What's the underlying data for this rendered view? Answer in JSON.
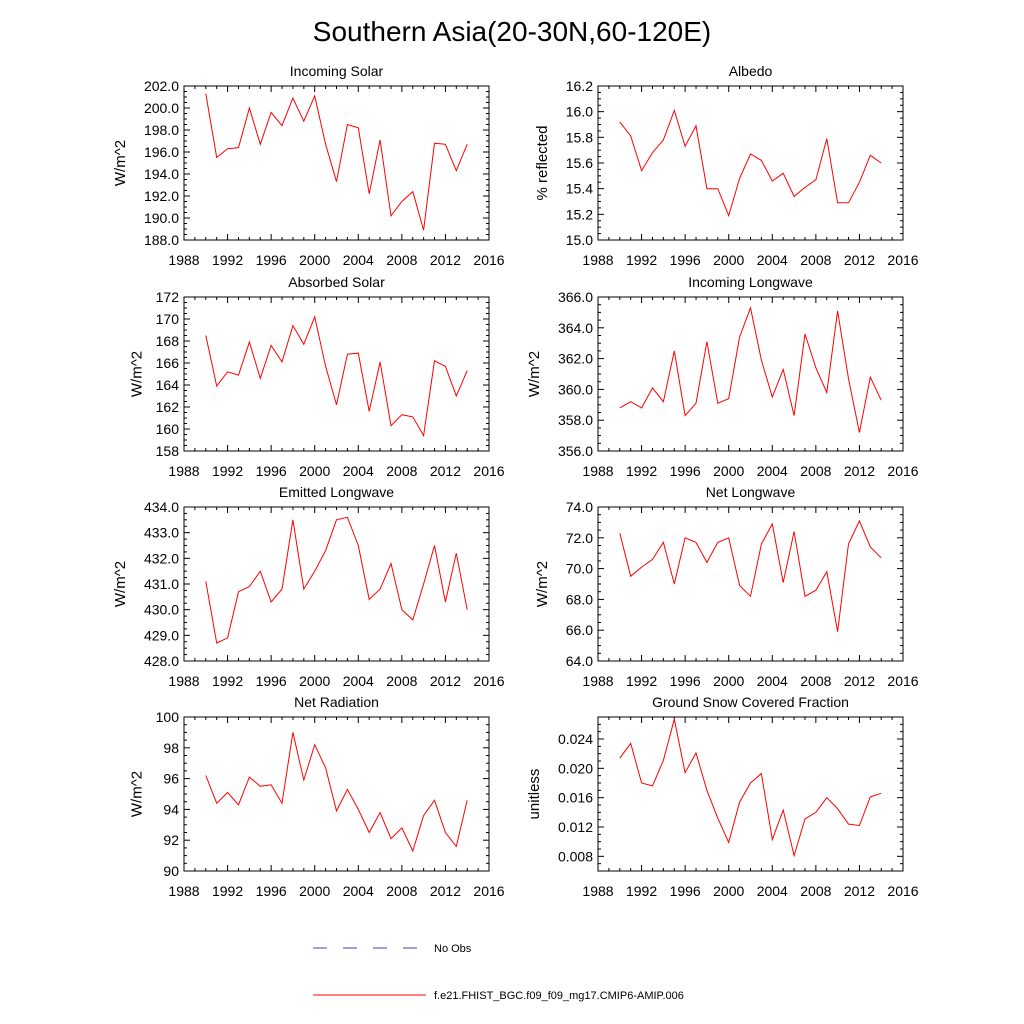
{
  "figure": {
    "title": "Southern Asia(20-30N,60-120E)",
    "line_color": "#ff0000",
    "obs_color": "#3f3fbf"
  },
  "legend": {
    "obs_label": "No Obs",
    "model_label": "f.e21.FHIST_BGC.f09_f09_mg17.CMIP6-AMIP.006"
  },
  "chart_data": [
    {
      "type": "line",
      "title": "Incoming Solar",
      "ylabel": "W/m^2",
      "xlim": [
        1988,
        2016
      ],
      "ylim": [
        188,
        202
      ],
      "xticks": [
        1988,
        1992,
        1996,
        2000,
        2004,
        2008,
        2012,
        2016
      ],
      "yticks": [
        188,
        190,
        192,
        194,
        196,
        198,
        200,
        202
      ],
      "ytick_labels": [
        "188.0",
        "190.0",
        "192.0",
        "194.0",
        "196.0",
        "198.0",
        "200.0",
        "202.0"
      ],
      "x": [
        1990,
        1991,
        1992,
        1993,
        1994,
        1995,
        1996,
        1997,
        1998,
        1999,
        2000,
        2001,
        2002,
        2003,
        2004,
        2005,
        2006,
        2007,
        2008,
        2009,
        2010,
        2011,
        2012,
        2013,
        2014
      ],
      "values": [
        201.3,
        195.5,
        196.3,
        196.4,
        200.0,
        196.7,
        199.6,
        198.4,
        200.9,
        198.8,
        201.1,
        196.7,
        193.3,
        198.5,
        198.2,
        192.2,
        197.1,
        190.2,
        191.5,
        192.4,
        188.9,
        196.8,
        196.7,
        194.3,
        196.7
      ]
    },
    {
      "type": "line",
      "title": "Albedo",
      "ylabel": "% reflected",
      "xlim": [
        1988,
        2016
      ],
      "ylim": [
        15.0,
        16.2
      ],
      "xticks": [
        1988,
        1992,
        1996,
        2000,
        2004,
        2008,
        2012,
        2016
      ],
      "yticks": [
        15.0,
        15.2,
        15.4,
        15.6,
        15.8,
        16.0,
        16.2
      ],
      "ytick_labels": [
        "15.0",
        "15.2",
        "15.4",
        "15.6",
        "15.8",
        "16.0",
        "16.2"
      ],
      "x": [
        1990,
        1991,
        1992,
        1993,
        1994,
        1995,
        1996,
        1997,
        1998,
        1999,
        2000,
        2001,
        2002,
        2003,
        2004,
        2005,
        2006,
        2007,
        2008,
        2009,
        2010,
        2011,
        2012,
        2013,
        2014
      ],
      "values": [
        15.92,
        15.81,
        15.54,
        15.68,
        15.78,
        16.01,
        15.73,
        15.89,
        15.4,
        15.4,
        15.19,
        15.48,
        15.67,
        15.62,
        15.46,
        15.52,
        15.34,
        15.41,
        15.47,
        15.79,
        15.29,
        15.29,
        15.45,
        15.66,
        15.6
      ]
    },
    {
      "type": "line",
      "title": "Absorbed Solar",
      "ylabel": "W/m^2",
      "xlim": [
        1988,
        2016
      ],
      "ylim": [
        158,
        172
      ],
      "xticks": [
        1988,
        1992,
        1996,
        2000,
        2004,
        2008,
        2012,
        2016
      ],
      "yticks": [
        158,
        160,
        162,
        164,
        166,
        168,
        170,
        172
      ],
      "ytick_labels": [
        "158",
        "160",
        "162",
        "164",
        "166",
        "168",
        "170",
        "172"
      ],
      "x": [
        1990,
        1991,
        1992,
        1993,
        1994,
        1995,
        1996,
        1997,
        1998,
        1999,
        2000,
        2001,
        2002,
        2003,
        2004,
        2005,
        2006,
        2007,
        2008,
        2009,
        2010,
        2011,
        2012,
        2013,
        2014
      ],
      "values": [
        168.5,
        163.9,
        165.2,
        164.9,
        167.9,
        164.6,
        167.6,
        166.1,
        169.4,
        167.7,
        170.2,
        165.7,
        162.2,
        166.8,
        166.9,
        161.6,
        166.1,
        160.3,
        161.3,
        161.1,
        159.4,
        166.2,
        165.7,
        163.0,
        165.3
      ]
    },
    {
      "type": "line",
      "title": "Incoming Longwave",
      "ylabel": "W/m^2",
      "xlim": [
        1988,
        2016
      ],
      "ylim": [
        356,
        366
      ],
      "xticks": [
        1988,
        1992,
        1996,
        2000,
        2004,
        2008,
        2012,
        2016
      ],
      "yticks": [
        356,
        358,
        360,
        362,
        364,
        366
      ],
      "ytick_labels": [
        "356.0",
        "358.0",
        "360.0",
        "362.0",
        "364.0",
        "366.0"
      ],
      "x": [
        1990,
        1991,
        1992,
        1993,
        1994,
        1995,
        1996,
        1997,
        1998,
        1999,
        2000,
        2001,
        2002,
        2003,
        2004,
        2005,
        2006,
        2007,
        2008,
        2009,
        2010,
        2011,
        2012,
        2013,
        2014
      ],
      "values": [
        358.8,
        359.2,
        358.8,
        360.1,
        359.2,
        362.5,
        358.3,
        359.1,
        363.1,
        359.1,
        359.4,
        363.4,
        365.3,
        361.9,
        359.5,
        361.3,
        358.3,
        363.6,
        361.4,
        359.8,
        365.1,
        360.7,
        357.2,
        360.8,
        359.3
      ]
    },
    {
      "type": "line",
      "title": "Emitted Longwave",
      "ylabel": "W/m^2",
      "xlim": [
        1988,
        2016
      ],
      "ylim": [
        428,
        434
      ],
      "xticks": [
        1988,
        1992,
        1996,
        2000,
        2004,
        2008,
        2012,
        2016
      ],
      "yticks": [
        428,
        429,
        430,
        431,
        432,
        433,
        434
      ],
      "ytick_labels": [
        "428.0",
        "429.0",
        "430.0",
        "431.0",
        "432.0",
        "433.0",
        "434.0"
      ],
      "x": [
        1990,
        1991,
        1992,
        1993,
        1994,
        1995,
        1996,
        1997,
        1998,
        1999,
        2000,
        2001,
        2002,
        2003,
        2004,
        2005,
        2006,
        2007,
        2008,
        2009,
        2010,
        2011,
        2012,
        2013,
        2014
      ],
      "values": [
        431.1,
        428.7,
        428.9,
        430.7,
        430.9,
        431.5,
        430.3,
        430.8,
        433.5,
        430.8,
        431.5,
        432.3,
        433.5,
        433.6,
        432.5,
        430.4,
        430.8,
        431.8,
        430.0,
        429.6,
        431.0,
        432.5,
        430.3,
        432.2,
        430.0
      ]
    },
    {
      "type": "line",
      "title": "Net Longwave",
      "ylabel": "W/m^2",
      "xlim": [
        1988,
        2016
      ],
      "ylim": [
        64,
        74
      ],
      "xticks": [
        1988,
        1992,
        1996,
        2000,
        2004,
        2008,
        2012,
        2016
      ],
      "yticks": [
        64,
        66,
        68,
        70,
        72,
        74
      ],
      "ytick_labels": [
        "64.0",
        "66.0",
        "68.0",
        "70.0",
        "72.0",
        "74.0"
      ],
      "x": [
        1990,
        1991,
        1992,
        1993,
        1994,
        1995,
        1996,
        1997,
        1998,
        1999,
        2000,
        2001,
        2002,
        2003,
        2004,
        2005,
        2006,
        2007,
        2008,
        2009,
        2010,
        2011,
        2012,
        2013,
        2014
      ],
      "values": [
        72.3,
        69.5,
        70.1,
        70.6,
        71.7,
        69.0,
        72.0,
        71.7,
        70.4,
        71.7,
        72.0,
        68.9,
        68.2,
        71.6,
        72.9,
        69.1,
        72.4,
        68.2,
        68.6,
        69.8,
        65.9,
        71.6,
        73.1,
        71.4,
        70.7
      ]
    },
    {
      "type": "line",
      "title": "Net Radiation",
      "ylabel": "W/m^2",
      "xlim": [
        1988,
        2016
      ],
      "ylim": [
        90,
        100
      ],
      "xticks": [
        1988,
        1992,
        1996,
        2000,
        2004,
        2008,
        2012,
        2016
      ],
      "yticks": [
        90,
        92,
        94,
        96,
        98,
        100
      ],
      "ytick_labels": [
        "90",
        "92",
        "94",
        "96",
        "98",
        "100"
      ],
      "x": [
        1990,
        1991,
        1992,
        1993,
        1994,
        1995,
        1996,
        1997,
        1998,
        1999,
        2000,
        2001,
        2002,
        2003,
        2004,
        2005,
        2006,
        2007,
        2008,
        2009,
        2010,
        2011,
        2012,
        2013,
        2014
      ],
      "values": [
        96.2,
        94.4,
        95.1,
        94.3,
        96.1,
        95.5,
        95.6,
        94.4,
        99.0,
        95.9,
        98.2,
        96.7,
        93.9,
        95.3,
        94.0,
        92.5,
        93.8,
        92.1,
        92.8,
        91.3,
        93.6,
        94.6,
        92.5,
        91.6,
        94.6
      ]
    },
    {
      "type": "line",
      "title": "Ground Snow Covered Fraction",
      "ylabel": "unitless",
      "xlim": [
        1988,
        2016
      ],
      "ylim": [
        0.006,
        0.027
      ],
      "xticks": [
        1988,
        1992,
        1996,
        2000,
        2004,
        2008,
        2012,
        2016
      ],
      "yticks": [
        0.008,
        0.012,
        0.016,
        0.02,
        0.024
      ],
      "ytick_labels": [
        "0.008",
        "0.012",
        "0.016",
        "0.020",
        "0.024"
      ],
      "x": [
        1990,
        1991,
        1992,
        1993,
        1994,
        1995,
        1996,
        1997,
        1998,
        1999,
        2000,
        2001,
        2002,
        2003,
        2004,
        2005,
        2006,
        2007,
        2008,
        2009,
        2010,
        2011,
        2012,
        2013,
        2014
      ],
      "values": [
        0.0214,
        0.0234,
        0.018,
        0.0176,
        0.0211,
        0.0267,
        0.0194,
        0.0221,
        0.017,
        0.0132,
        0.0099,
        0.0154,
        0.018,
        0.0193,
        0.0103,
        0.0143,
        0.0081,
        0.0131,
        0.014,
        0.016,
        0.0145,
        0.0124,
        0.0122,
        0.0161,
        0.0166
      ]
    }
  ]
}
